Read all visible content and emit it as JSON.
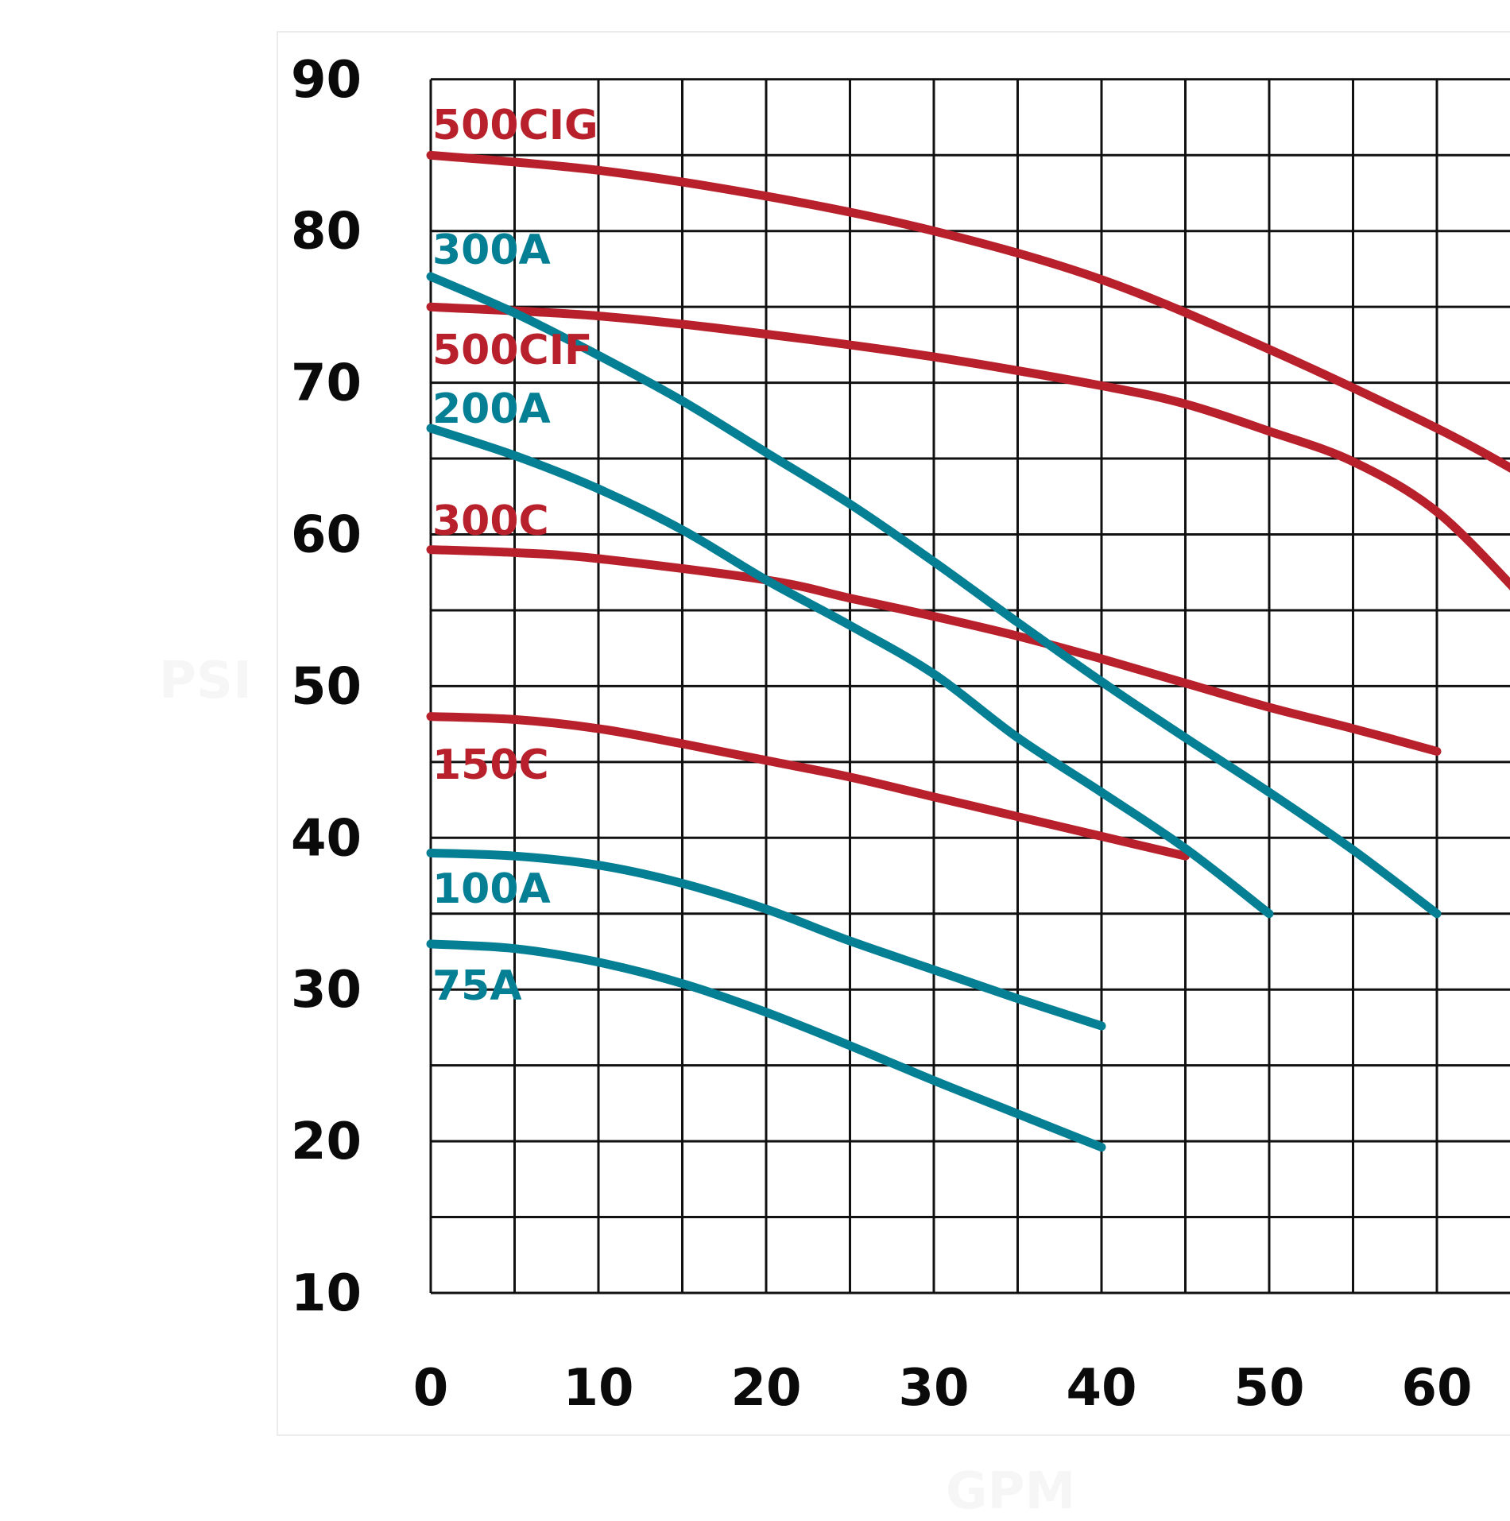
{
  "chart_data": {
    "type": "line",
    "xlabel": "GPM",
    "ylabel": "PSI",
    "xlim": [
      0,
      65
    ],
    "ylim": [
      10,
      90
    ],
    "x_ticks": [
      0,
      10,
      20,
      30,
      40,
      50,
      60
    ],
    "y_ticks": [
      10,
      20,
      30,
      40,
      50,
      60,
      70,
      80,
      90
    ],
    "grid": true,
    "colors": {
      "red": "#b8212b",
      "teal": "#047f94"
    },
    "series": [
      {
        "name": "500CIG",
        "color": "red",
        "x": [
          0,
          10,
          20,
          30,
          40,
          50,
          60,
          65
        ],
        "y": [
          85,
          84,
          82.3,
          80,
          76.8,
          72.2,
          67,
          64
        ]
      },
      {
        "name": "500CIF",
        "color": "red",
        "x": [
          0,
          10,
          20,
          30,
          40,
          45,
          50,
          55,
          60,
          65
        ],
        "y": [
          75,
          74.4,
          73.2,
          71.7,
          69.8,
          68.6,
          66.8,
          64.8,
          61.5,
          56
        ]
      },
      {
        "name": "300C",
        "color": "red",
        "x": [
          0,
          5,
          10,
          20,
          25,
          30,
          35,
          40,
          45,
          50,
          55,
          60
        ],
        "y": [
          59,
          58.8,
          58.4,
          57,
          55.8,
          54.6,
          53.3,
          51.8,
          50.2,
          48.6,
          47.2,
          45.7
        ]
      },
      {
        "name": "150C",
        "color": "red",
        "x": [
          0,
          5,
          10,
          15,
          20,
          25,
          30,
          35,
          40,
          45
        ],
        "y": [
          48,
          47.8,
          47.2,
          46.2,
          45.1,
          44,
          42.7,
          41.4,
          40.1,
          38.8
        ]
      },
      {
        "name": "300A",
        "color": "teal",
        "x": [
          0,
          5,
          10,
          15,
          20,
          25,
          30,
          35,
          40,
          45,
          50,
          55,
          60
        ],
        "y": [
          77,
          74.6,
          71.8,
          68.8,
          65.4,
          62,
          58.2,
          54.2,
          50.3,
          46.6,
          43,
          39.2,
          35
        ]
      },
      {
        "name": "200A",
        "color": "teal",
        "x": [
          0,
          5,
          10,
          15,
          20,
          25,
          30,
          35,
          40,
          45,
          50
        ],
        "y": [
          67,
          65.2,
          63,
          60.3,
          57,
          54,
          50.8,
          46.6,
          43,
          39.3,
          35
        ]
      },
      {
        "name": "100A",
        "color": "teal",
        "x": [
          0,
          5,
          10,
          15,
          20,
          25,
          30,
          35,
          40
        ],
        "y": [
          39,
          38.8,
          38.2,
          37,
          35.3,
          33.2,
          31.3,
          29.4,
          27.6
        ]
      },
      {
        "name": "75A",
        "color": "teal",
        "x": [
          0,
          5,
          10,
          15,
          20,
          25,
          30,
          35,
          40
        ],
        "y": [
          33,
          32.7,
          31.8,
          30.4,
          28.5,
          26.3,
          24,
          21.8,
          19.6
        ]
      }
    ]
  }
}
